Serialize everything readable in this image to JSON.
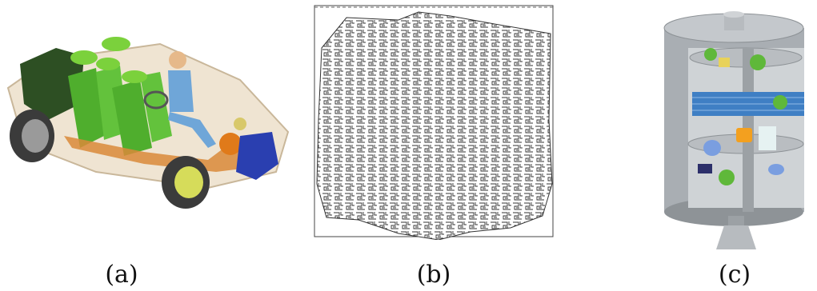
{
  "panels": [
    {
      "caption": "(a)",
      "image": "car-assembly-model"
    },
    {
      "caption": "(b)",
      "image": "dense-packing-layout"
    },
    {
      "caption": "(c)",
      "image": "cylindrical-satellite-module"
    }
  ],
  "colors": {
    "car_green": "#5fb83a",
    "car_blue_part": "#2a3fb0",
    "car_orange_part": "#e07a1a",
    "satellite_gray": "#a9aeb3",
    "solar_panel_blue": "#3f7fc4",
    "packing_line": "#333333"
  }
}
